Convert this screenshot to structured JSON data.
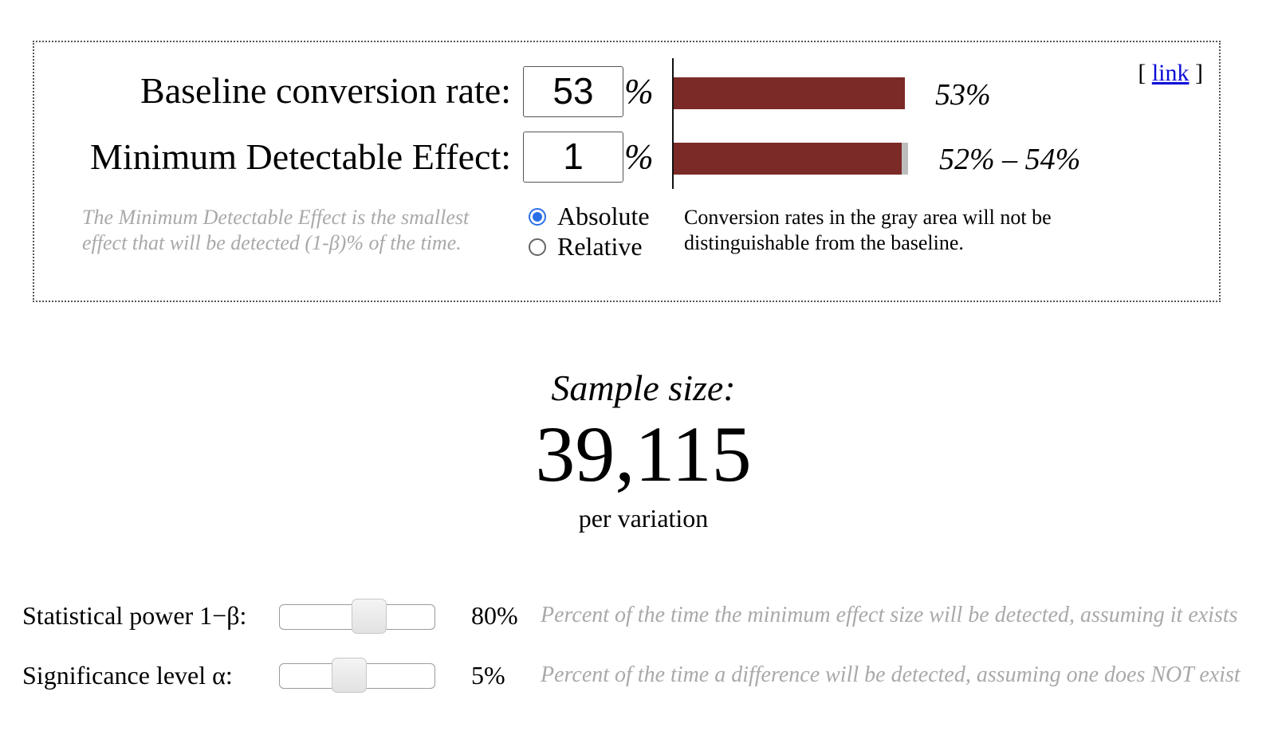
{
  "link_label": "link",
  "baseline": {
    "label": "Baseline conversion rate:",
    "value": "53",
    "unit": "%",
    "bar_label": "53%",
    "bar_fraction": 0.53
  },
  "mde": {
    "label": "Minimum Detectable Effect:",
    "value": "1",
    "unit": "%",
    "bar_label": "52% – 54%",
    "bar_low": 0.52,
    "bar_high": 0.54,
    "hint": "The Minimum Detectable Effect is the smallest effect that will be detected (1-β)% of the time."
  },
  "mode": {
    "options": [
      "Absolute",
      "Relative"
    ],
    "selected": "Absolute"
  },
  "gray_note": "Conversion rates in the gray area will not be distinguishable from the baseline.",
  "sample": {
    "title": "Sample size:",
    "value": "39,115",
    "unit": "per variation"
  },
  "power": {
    "label": "Statistical power 1−β:",
    "value": "80%",
    "level": 0.8,
    "description": "Percent of the time the minimum effect size will be detected, assuming it exists"
  },
  "significance": {
    "label": "Significance level α:",
    "value": "5%",
    "level": 0.05,
    "description": "Percent of the time a difference will be detected, assuming one does NOT exist"
  },
  "colors": {
    "bar": "#7b2a27",
    "gray_area": "#bdbdbd",
    "radio_selected": "#2b6fe8",
    "hint_text": "#a9a9a9",
    "link": "#0a0ad8"
  }
}
